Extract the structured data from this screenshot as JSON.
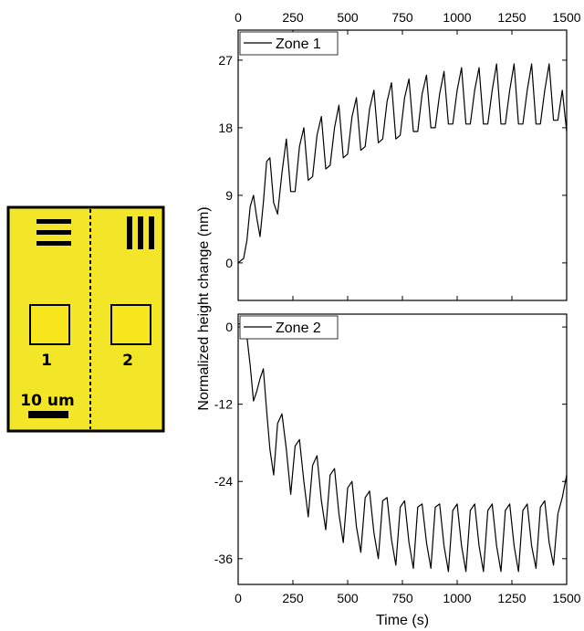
{
  "schematic": {
    "region_labels": [
      "1",
      "2"
    ],
    "scale_bar_label": "10 um",
    "colors": {
      "fill": "#f3e528",
      "square_fill": "#f8e61c",
      "outline": "#000000"
    }
  },
  "chart_data": [
    {
      "type": "line",
      "xlabel": "Time (s)",
      "ylabel": "Normalized height change (nm)",
      "xlim": [
        0,
        1500
      ],
      "ylim": [
        -5,
        31
      ],
      "xticks": [
        0,
        250,
        500,
        750,
        1000,
        1250,
        1500
      ],
      "xtick_labels": [
        "0",
        "250",
        "500",
        "750",
        "1000",
        "1250",
        "1500"
      ],
      "yticks": [
        0,
        9,
        18,
        27
      ],
      "ytick_labels": [
        "0",
        "9",
        "18",
        "27"
      ],
      "legend": {
        "placement": "top-left",
        "entries": [
          "Zone 1"
        ]
      },
      "grid": false,
      "series": [
        {
          "name": "Zone 1",
          "color": "#000000",
          "x": [
            0,
            12,
            25,
            40,
            55,
            70,
            85,
            100,
            115,
            130,
            145,
            162,
            180,
            200,
            220,
            240,
            260,
            280,
            300,
            320,
            340,
            360,
            380,
            400,
            420,
            440,
            460,
            480,
            500,
            520,
            540,
            560,
            580,
            600,
            620,
            640,
            660,
            680,
            700,
            720,
            740,
            760,
            780,
            800,
            820,
            840,
            860,
            880,
            900,
            920,
            940,
            960,
            980,
            1000,
            1020,
            1040,
            1060,
            1080,
            1100,
            1120,
            1140,
            1160,
            1180,
            1200,
            1220,
            1240,
            1260,
            1280,
            1300,
            1320,
            1340,
            1360,
            1380,
            1400,
            1420,
            1440,
            1460,
            1480,
            1500
          ],
          "y": [
            0.0,
            0.3,
            0.6,
            3.0,
            7.5,
            9.0,
            6.0,
            3.5,
            8.0,
            13.5,
            14.0,
            8.0,
            6.5,
            12.0,
            16.5,
            9.5,
            9.5,
            15.5,
            18.0,
            11.0,
            11.5,
            17.0,
            19.5,
            12.5,
            13.0,
            18.0,
            21.0,
            14.0,
            14.5,
            19.5,
            22.0,
            15.0,
            15.5,
            20.5,
            23.0,
            16.0,
            16.5,
            21.5,
            24.0,
            16.5,
            17.0,
            22.0,
            24.5,
            17.5,
            17.5,
            22.5,
            25.0,
            18.0,
            18.0,
            22.5,
            25.5,
            18.5,
            18.5,
            23.0,
            26.0,
            18.5,
            18.5,
            23.0,
            26.0,
            18.5,
            18.5,
            23.0,
            26.5,
            18.5,
            18.5,
            23.0,
            26.5,
            18.5,
            18.5,
            23.0,
            26.5,
            18.5,
            18.5,
            23.0,
            26.5,
            19.0,
            19.0,
            23.0,
            17.5
          ]
        }
      ]
    },
    {
      "type": "line",
      "xlabel": "Time (s)",
      "ylabel": "Normalized height change (nm)",
      "xlim": [
        0,
        1500
      ],
      "ylim": [
        -40,
        2
      ],
      "xticks": [
        0,
        250,
        500,
        750,
        1000,
        1250,
        1500
      ],
      "xtick_labels": [
        "0",
        "250",
        "500",
        "750",
        "1000",
        "1250",
        "1500"
      ],
      "yticks": [
        0,
        -12,
        -24,
        -36
      ],
      "ytick_labels": [
        "0",
        "-12",
        "-24",
        "-36"
      ],
      "legend": {
        "placement": "top-left",
        "entries": [
          "Zone 2"
        ]
      },
      "grid": false,
      "series": [
        {
          "name": "Zone 2",
          "color": "#000000",
          "x": [
            0,
            12,
            25,
            40,
            55,
            70,
            85,
            100,
            115,
            130,
            145,
            162,
            180,
            200,
            220,
            240,
            260,
            280,
            300,
            320,
            340,
            360,
            380,
            400,
            420,
            440,
            460,
            480,
            500,
            520,
            540,
            560,
            580,
            600,
            620,
            640,
            660,
            680,
            700,
            720,
            740,
            760,
            780,
            800,
            820,
            840,
            860,
            880,
            900,
            920,
            940,
            960,
            980,
            1000,
            1020,
            1040,
            1060,
            1080,
            1100,
            1120,
            1140,
            1160,
            1180,
            1200,
            1220,
            1240,
            1260,
            1280,
            1300,
            1320,
            1340,
            1360,
            1380,
            1400,
            1420,
            1440,
            1460,
            1480,
            1500
          ],
          "y": [
            0.5,
            0.5,
            0.0,
            -1.5,
            -6.0,
            -11.5,
            -10.0,
            -8.0,
            -6.5,
            -13.0,
            -19.0,
            -23.0,
            -15.0,
            -13.5,
            -19.0,
            -26.0,
            -18.5,
            -17.5,
            -24.0,
            -29.5,
            -21.5,
            -20.0,
            -27.0,
            -31.5,
            -23.0,
            -22.0,
            -29.0,
            -33.5,
            -25.0,
            -24.0,
            -31.0,
            -35.0,
            -26.5,
            -25.5,
            -32.0,
            -36.0,
            -27.0,
            -26.5,
            -33.0,
            -37.0,
            -28.0,
            -27.0,
            -33.5,
            -37.5,
            -28.0,
            -27.5,
            -33.5,
            -37.5,
            -28.0,
            -27.5,
            -34.0,
            -38.0,
            -28.5,
            -27.5,
            -34.0,
            -38.0,
            -28.5,
            -27.5,
            -34.0,
            -38.0,
            -28.5,
            -27.5,
            -34.0,
            -38.0,
            -28.5,
            -27.5,
            -34.0,
            -38.0,
            -28.5,
            -27.5,
            -34.0,
            -37.5,
            -28.0,
            -27.0,
            -33.5,
            -37.0,
            -29.0,
            -26.5,
            -23.0
          ]
        }
      ]
    }
  ]
}
